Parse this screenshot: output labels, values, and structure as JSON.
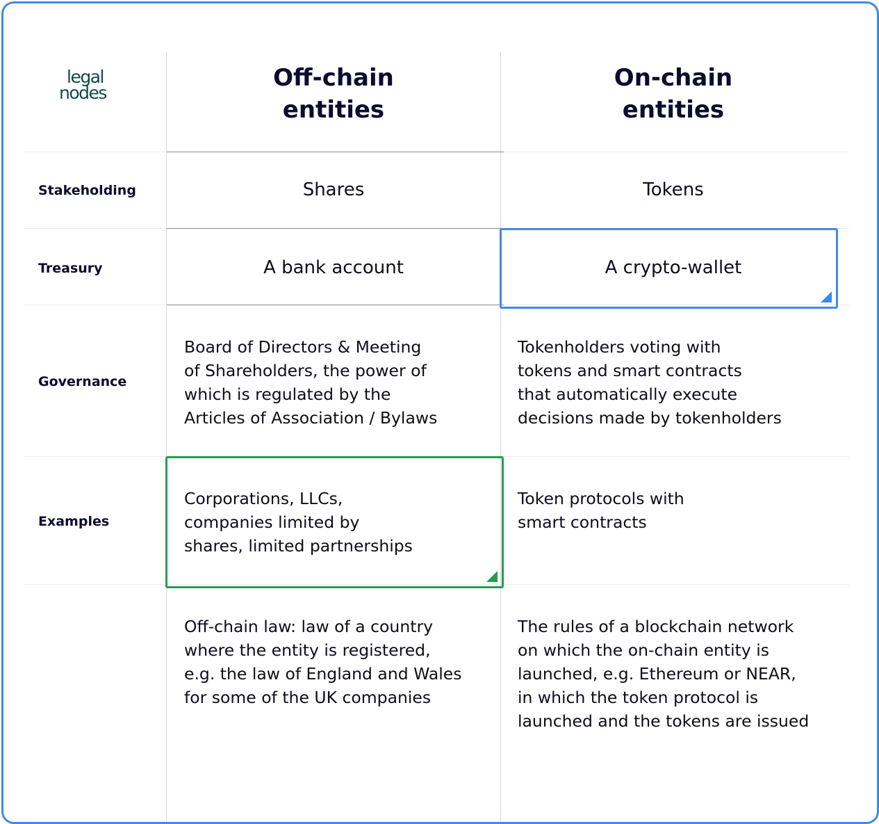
{
  "logo": {
    "line1": "legal",
    "line2": "nodes"
  },
  "columns": [
    {
      "title_line1": "Off-chain",
      "title_line2": "entities"
    },
    {
      "title_line1": "On-chain",
      "title_line2": "entities"
    }
  ],
  "rows": [
    {
      "label": "Stakeholding",
      "off_chain": "Shares",
      "on_chain": "Tokens"
    },
    {
      "label": "Treasury",
      "off_chain": "A bank account",
      "on_chain": "A crypto-wallet"
    },
    {
      "label": "Governance",
      "off_chain": "Board of Directors & Meeting\nof Shareholders, the power of\nwhich is regulated by the\nArticles of Association / Bylaws",
      "on_chain": "Tokenholders voting with\ntokens and smart contracts\nthat automatically execute\ndecisions made by tokenholders"
    },
    {
      "label": "Examples",
      "off_chain": "Corporations, LLCs,\ncompanies limited by\nshares, limited partnerships",
      "on_chain": "Token protocols with\nsmart contracts"
    },
    {
      "label": "",
      "off_chain": "Off-chain law: law of a country\nwhere the entity is registered,\ne.g. the law of England and Wales\nfor some of the UK companies",
      "on_chain": "The rules of a blockchain network\non which the on-chain entity is\nlaunched, e.g. Ethereum or NEAR,\nin which the token protocol is\nlaunched and the tokens are issued"
    }
  ],
  "selection_colors": {
    "treasury_on_chain": "#3d8be8",
    "examples_off_chain": "#2a9a55"
  }
}
